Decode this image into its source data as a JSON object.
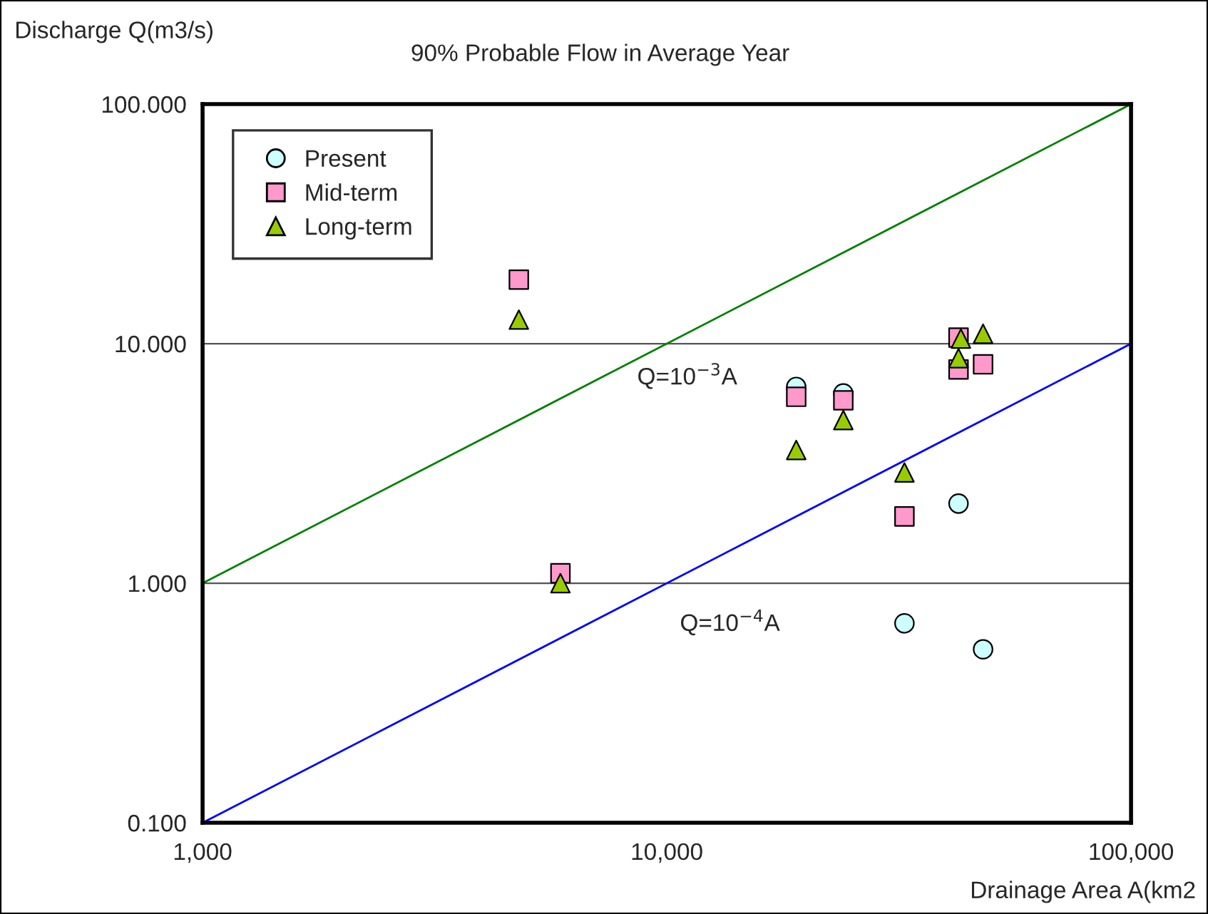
{
  "chart_data": {
    "type": "scatter",
    "title": "90% Probable Flow in Average Year",
    "xlabel": "Drainage Area A(km2",
    "ylabel": "Discharge Q(m3/s)",
    "log": "xy",
    "xlim": [
      1000,
      100000
    ],
    "xticks": [
      {
        "value": 1000,
        "label": "1,000"
      },
      {
        "value": 10000,
        "label": "10,000"
      },
      {
        "value": 100000,
        "label": "100,000"
      }
    ],
    "ylim": [
      0.1,
      100
    ],
    "yticks": [
      {
        "value": 0.1,
        "label": "0.100"
      },
      {
        "value": 1,
        "label": "1.000"
      },
      {
        "value": 10,
        "label": "10.000"
      },
      {
        "value": 100,
        "label": "100.000"
      }
    ],
    "grid": "y",
    "legend": "top left",
    "series": [
      {
        "type": "line",
        "color": "#008000",
        "marker": "none",
        "x": [
          1000,
          100000
        ],
        "values": [
          1,
          100
        ]
      },
      {
        "type": "line",
        "color": "#0000ff",
        "marker": "none",
        "x": [
          1000,
          100000
        ],
        "values": [
          0.1,
          10
        ]
      },
      {
        "name": "Present",
        "marker": "circle",
        "color": "#ccffff",
        "x": [
          19000,
          24000,
          32500,
          42500,
          48000
        ],
        "values": [
          6.6,
          6.2,
          0.68,
          2.15,
          0.53
        ]
      },
      {
        "name": "Mid-term",
        "marker": "square",
        "color": "#ff99cc",
        "x": [
          4800,
          5900,
          19000,
          24000,
          32500,
          42500,
          42500,
          48000
        ],
        "values": [
          18.5,
          1.1,
          6.0,
          5.8,
          1.9,
          10.6,
          7.8,
          8.2
        ]
      },
      {
        "name": "Long-term",
        "marker": "triangle",
        "color": "#99cc00",
        "x": [
          4800,
          5900,
          19000,
          24000,
          32500,
          42500,
          43000,
          48000
        ],
        "values": [
          12.6,
          1.0,
          3.6,
          4.8,
          2.9,
          8.7,
          10.5,
          11.0
        ]
      }
    ],
    "annotations": [
      "Q=10$^{−3}$A",
      "Q=10$^{−4}$A"
    ]
  }
}
